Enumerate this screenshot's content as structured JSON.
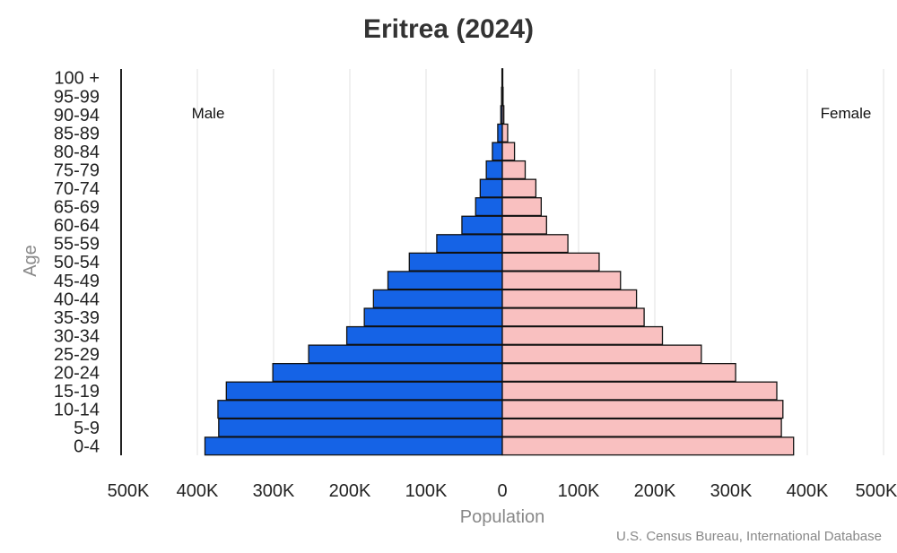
{
  "chart_data": {
    "type": "bar",
    "title": "Eritrea (2024)",
    "xlabel": "Population",
    "ylabel": "Age",
    "source": "U.S. Census Bureau, International Database",
    "categories": [
      "0-4",
      "5-9",
      "10-14",
      "15-19",
      "20-24",
      "25-29",
      "30-34",
      "35-39",
      "40-44",
      "45-49",
      "50-54",
      "55-59",
      "60-64",
      "65-69",
      "70-74",
      "75-79",
      "80-84",
      "85-89",
      "90-94",
      "95-99",
      "100 +"
    ],
    "series": [
      {
        "name": "Male",
        "color": "#1563e6",
        "values": [
          390000,
          372000,
          373000,
          362000,
          301000,
          254000,
          204000,
          181000,
          169000,
          150000,
          122000,
          86000,
          53000,
          35000,
          29000,
          21000,
          13000,
          6000,
          2000,
          1000,
          500
        ]
      },
      {
        "name": "Female",
        "color": "#f9c0c0",
        "values": [
          382000,
          366000,
          368000,
          360000,
          306000,
          261000,
          210000,
          186000,
          176000,
          155000,
          127000,
          86000,
          58000,
          51000,
          44000,
          30000,
          16000,
          7000,
          2000,
          1000,
          500
        ]
      }
    ],
    "xlim": [
      -500000,
      500000
    ],
    "xticks": [
      {
        "value": -500000,
        "label": "500K"
      },
      {
        "value": -400000,
        "label": "400K"
      },
      {
        "value": -300000,
        "label": "300K"
      },
      {
        "value": -200000,
        "label": "200K"
      },
      {
        "value": -100000,
        "label": "100K"
      },
      {
        "value": 0,
        "label": "0"
      },
      {
        "value": 100000,
        "label": "100K"
      },
      {
        "value": 200000,
        "label": "200K"
      },
      {
        "value": 300000,
        "label": "300K"
      },
      {
        "value": 400000,
        "label": "400K"
      },
      {
        "value": 500000,
        "label": "500K"
      }
    ],
    "grid": true,
    "side_labels": {
      "left": "Male",
      "right": "Female"
    }
  }
}
